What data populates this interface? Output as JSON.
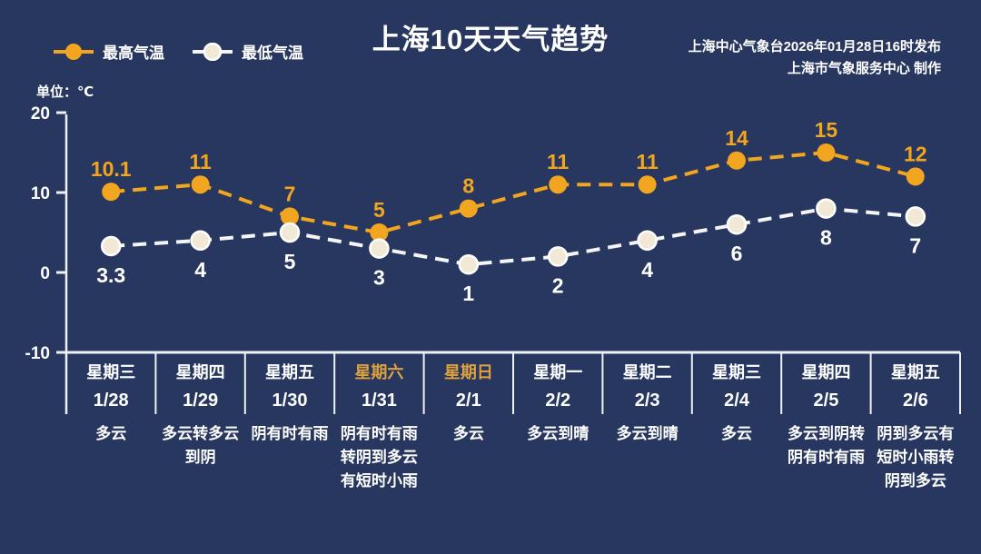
{
  "header": {
    "title": "上海10天天气趋势",
    "source_line1": "上海中心气象台2026年01月28日16时发布",
    "source_line2": "上海市气象服务中心 制作",
    "unit_label": "单位：℃"
  },
  "legend": {
    "max_label": "最高气温",
    "min_label": "最低气温"
  },
  "chart_data": {
    "type": "line",
    "title": "上海10天天气趋势",
    "categories": [
      "1/28",
      "1/29",
      "1/30",
      "1/31",
      "2/1",
      "2/2",
      "2/3",
      "2/4",
      "2/5",
      "2/6"
    ],
    "series": [
      {
        "name": "最高气温",
        "values": [
          10.1,
          11,
          7,
          5,
          8,
          11,
          11,
          14,
          15,
          12
        ]
      },
      {
        "name": "最低气温",
        "values": [
          3.3,
          4,
          5,
          3,
          1,
          2,
          4,
          6,
          8,
          7
        ]
      }
    ],
    "ylabel": "单位：℃",
    "yticks": [
      20,
      10,
      0,
      -10
    ],
    "ylim": [
      -10,
      20
    ],
    "grid": false,
    "line_style": "dashed",
    "legend_position": "top-left"
  },
  "days": [
    {
      "weekday": "星期三",
      "date": "1/28",
      "weather": "多云",
      "weekend": false
    },
    {
      "weekday": "星期四",
      "date": "1/29",
      "weather": "多云转多云到阴",
      "weekend": false
    },
    {
      "weekday": "星期五",
      "date": "1/30",
      "weather": "阴有时有雨",
      "weekend": false
    },
    {
      "weekday": "星期六",
      "date": "1/31",
      "weather": "阴有时有雨转阴到多云有短时小雨",
      "weekend": true
    },
    {
      "weekday": "星期日",
      "date": "2/1",
      "weather": "多云",
      "weekend": true
    },
    {
      "weekday": "星期一",
      "date": "2/2",
      "weather": "多云到晴",
      "weekend": false
    },
    {
      "weekday": "星期二",
      "date": "2/3",
      "weather": "多云到晴",
      "weekend": false
    },
    {
      "weekday": "星期三",
      "date": "2/4",
      "weather": "多云",
      "weekend": false
    },
    {
      "weekday": "星期四",
      "date": "2/5",
      "weather": "多云到阴转阴有时有雨",
      "weekend": false
    },
    {
      "weekday": "星期五",
      "date": "2/6",
      "weather": "阴到多云有短时小雨转阴到多云",
      "weekend": false
    }
  ],
  "colors": {
    "background": "#283760",
    "accent": "#f2a51e",
    "weekend_text": "#e0a23c",
    "min_line": "#f5f5f5",
    "min_marker": "#f1e8d6",
    "axis": "#eef1f7",
    "text": "#ffffff"
  }
}
